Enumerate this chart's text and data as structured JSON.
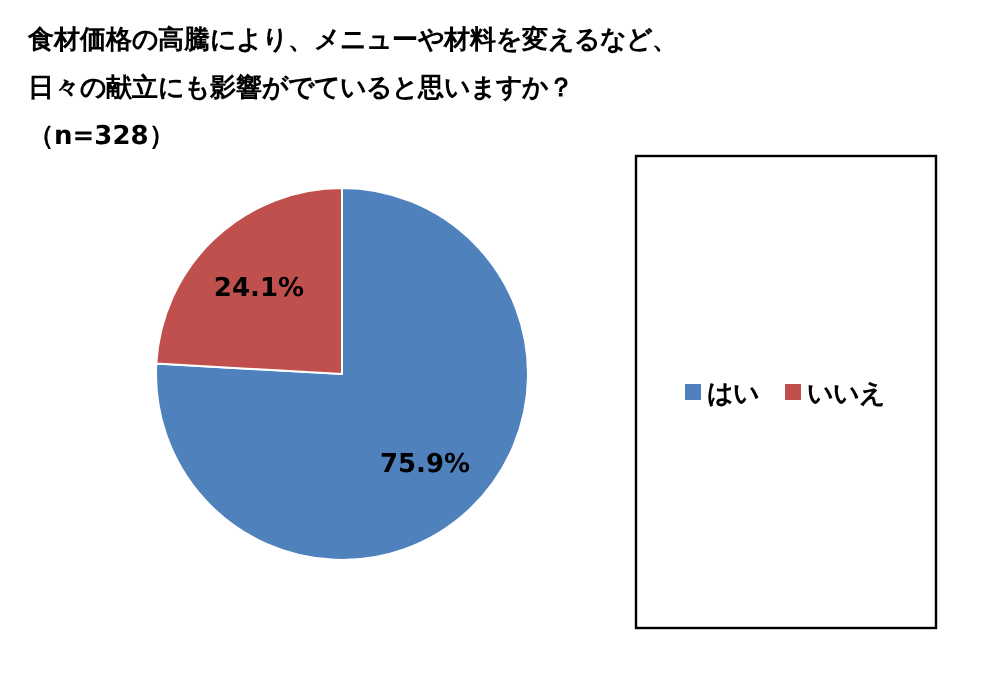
{
  "chart_data": {
    "type": "pie",
    "title": "食材価格の高騰により、メニューや材料を変えるなど、日々の献立にも影響がでていると思いますか？（n=328）",
    "categories": [
      "はい",
      "いいえ"
    ],
    "values": [
      75.9,
      24.1
    ],
    "colors": [
      "#4f81bd",
      "#c0504d"
    ],
    "value_labels": [
      "75.9%",
      "24.1%"
    ],
    "legend": "right"
  }
}
